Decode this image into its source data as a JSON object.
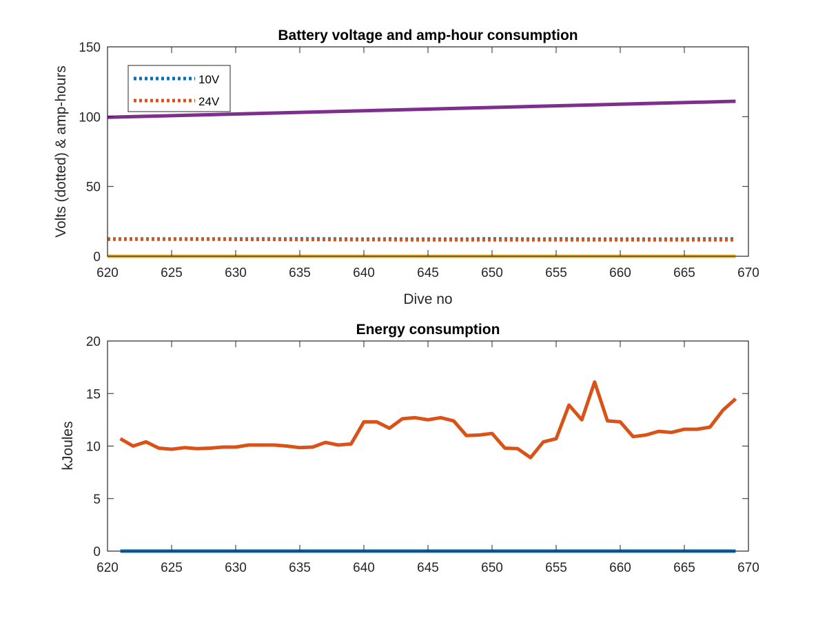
{
  "chart_data": [
    {
      "type": "line",
      "title": "Battery voltage and amp-hour consumption",
      "xlabel": "Dive no",
      "ylabel": "Volts (dotted) & amp-hours",
      "xlim": [
        620,
        670
      ],
      "ylim": [
        0,
        150
      ],
      "xticks": [
        620,
        625,
        630,
        635,
        640,
        645,
        650,
        655,
        660,
        665,
        670
      ],
      "yticks": [
        0,
        50,
        100,
        150
      ],
      "grid": false,
      "legend_position": "top-left",
      "series": [
        {
          "name": "10V",
          "color": "#0072BD",
          "style": "dotted",
          "in_legend": true,
          "x": [
            620,
            621,
            622,
            623,
            624,
            625,
            626,
            627,
            628,
            629,
            630,
            631,
            632,
            633,
            634,
            635,
            636,
            637,
            638,
            639,
            640,
            641,
            642,
            643,
            644,
            645,
            646,
            647,
            648,
            649,
            650,
            651,
            652,
            653,
            654,
            655,
            656,
            657,
            658,
            659,
            660,
            661,
            662,
            663,
            664,
            665,
            666,
            667,
            668,
            669
          ],
          "y": [
            12.4,
            12.4,
            12.4,
            12.4,
            12.4,
            12.4,
            12.4,
            12.4,
            12.4,
            12.4,
            12.4,
            12.4,
            12.4,
            12.4,
            12.4,
            12.5,
            12.5,
            12.4,
            12.4,
            12.3,
            12.3,
            12.3,
            12.4,
            12.3,
            12.3,
            12.3,
            12.3,
            12.3,
            12.3,
            12.4,
            12.5,
            12.4,
            12.4,
            12.3,
            12.3,
            12.4,
            12.4,
            12.3,
            12.3,
            12.3,
            12.3,
            12.3,
            12.3,
            12.3,
            12.3,
            12.3,
            12.4,
            12.4,
            12.4,
            12.4
          ]
        },
        {
          "name": "24V",
          "color": "#D95319",
          "style": "dotted",
          "in_legend": true,
          "x": [
            620,
            621,
            622,
            623,
            624,
            625,
            626,
            627,
            628,
            629,
            630,
            631,
            632,
            633,
            634,
            635,
            636,
            637,
            638,
            639,
            640,
            641,
            642,
            643,
            644,
            645,
            646,
            647,
            648,
            649,
            650,
            651,
            652,
            653,
            654,
            655,
            656,
            657,
            658,
            659,
            660,
            661,
            662,
            663,
            664,
            665,
            666,
            667,
            668,
            669
          ],
          "y": [
            12.2,
            12.2,
            12.2,
            12.2,
            12.2,
            12.2,
            12.2,
            12.2,
            12.2,
            12.2,
            12.1,
            12.1,
            12.1,
            12.1,
            12.0,
            12.0,
            12.0,
            12.0,
            11.9,
            11.9,
            11.9,
            11.9,
            11.9,
            11.8,
            11.8,
            11.8,
            11.8,
            11.8,
            11.8,
            11.8,
            11.8,
            11.8,
            11.8,
            11.8,
            11.8,
            11.8,
            11.8,
            11.8,
            11.8,
            11.8,
            11.8,
            11.8,
            11.8,
            11.8,
            11.8,
            11.8,
            11.8,
            11.8,
            11.8,
            11.8
          ]
        },
        {
          "name": "",
          "color": "#EDB120",
          "style": "solid",
          "in_legend": false,
          "x": [
            620,
            669
          ],
          "y": [
            0,
            0
          ]
        },
        {
          "name": "",
          "color": "#7E2F8E",
          "style": "solid",
          "in_legend": false,
          "x": [
            620,
            669
          ],
          "y": [
            99.5,
            111
          ]
        }
      ]
    },
    {
      "type": "line",
      "title": "Energy consumption",
      "xlabel": "",
      "ylabel": "kJoules",
      "xlim": [
        620,
        670
      ],
      "ylim": [
        0,
        20
      ],
      "xticks": [
        620,
        625,
        630,
        635,
        640,
        645,
        650,
        655,
        660,
        665,
        670
      ],
      "yticks": [
        0,
        5,
        10,
        15,
        20
      ],
      "grid": false,
      "series": [
        {
          "name": "",
          "color": "#0072BD",
          "style": "solid",
          "x": [
            621,
            669
          ],
          "y": [
            0,
            0
          ]
        },
        {
          "name": "",
          "color": "#D95319",
          "style": "solid",
          "x": [
            621,
            622,
            623,
            624,
            625,
            626,
            627,
            628,
            629,
            630,
            631,
            632,
            633,
            634,
            635,
            636,
            637,
            638,
            639,
            640,
            641,
            642,
            643,
            644,
            645,
            646,
            647,
            648,
            649,
            650,
            651,
            652,
            653,
            654,
            655,
            656,
            657,
            658,
            659,
            660,
            661,
            662,
            663,
            664,
            665,
            666,
            667,
            668,
            669
          ],
          "y": [
            10.7,
            10.0,
            10.4,
            9.8,
            9.7,
            9.85,
            9.75,
            9.8,
            9.9,
            9.9,
            10.1,
            10.1,
            10.1,
            10.0,
            9.85,
            9.9,
            10.35,
            10.1,
            10.2,
            12.3,
            12.3,
            11.7,
            12.6,
            12.7,
            12.5,
            12.7,
            12.4,
            11.0,
            11.05,
            11.2,
            9.8,
            9.75,
            8.9,
            10.4,
            10.7,
            13.9,
            12.5,
            16.1,
            12.4,
            12.3,
            10.9,
            11.05,
            11.4,
            11.3,
            11.6,
            11.6,
            11.8,
            13.4,
            14.5
          ]
        }
      ]
    }
  ]
}
